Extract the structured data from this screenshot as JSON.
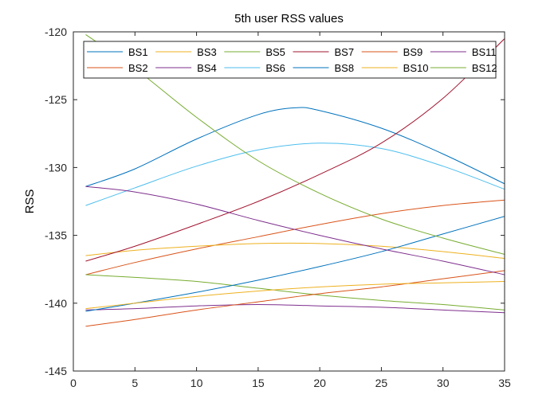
{
  "chart_data": {
    "type": "line",
    "title": "5th user RSS values",
    "xlabel": "",
    "ylabel": "RSS",
    "xlim": [
      0,
      35
    ],
    "ylim": [
      -145,
      -120
    ],
    "xticks": [
      0,
      5,
      10,
      15,
      20,
      25,
      30,
      35
    ],
    "yticks": [
      -145,
      -140,
      -135,
      -130,
      -125,
      -120
    ],
    "grid": false,
    "legend_position": "top",
    "legend_columns": 6,
    "series": [
      {
        "name": "BS1",
        "color": "#0072BD",
        "x": [
          1,
          5,
          10,
          15,
          18,
          20,
          25,
          30,
          35
        ],
        "y": [
          -131.4,
          -130.1,
          -127.9,
          -126.1,
          -125.6,
          -125.8,
          -127.1,
          -129.0,
          -131.2
        ]
      },
      {
        "name": "BS2",
        "color": "#D95319",
        "x": [
          1,
          5,
          10,
          15,
          20,
          25,
          30,
          35
        ],
        "y": [
          -137.9,
          -137.0,
          -136.0,
          -135.1,
          -134.2,
          -133.4,
          -132.8,
          -132.4
        ]
      },
      {
        "name": "BS3",
        "color": "#EDB120",
        "x": [
          1,
          5,
          10,
          15,
          20,
          25,
          30,
          35
        ],
        "y": [
          -136.5,
          -136.1,
          -135.8,
          -135.6,
          -135.6,
          -135.8,
          -136.2,
          -136.7
        ]
      },
      {
        "name": "BS4",
        "color": "#7E2F8E",
        "x": [
          1,
          5,
          10,
          15,
          20,
          25,
          30,
          35
        ],
        "y": [
          -140.5,
          -140.4,
          -140.2,
          -140.1,
          -140.2,
          -140.3,
          -140.5,
          -140.7
        ]
      },
      {
        "name": "BS5",
        "color": "#77AC30",
        "x": [
          1,
          5,
          10,
          15,
          20,
          25,
          30,
          35
        ],
        "y": [
          -137.9,
          -138.1,
          -138.4,
          -138.9,
          -139.4,
          -139.8,
          -140.1,
          -140.5
        ]
      },
      {
        "name": "BS6",
        "color": "#4DBEEE",
        "x": [
          1,
          5,
          10,
          15,
          20,
          25,
          30,
          35
        ],
        "y": [
          -132.8,
          -131.5,
          -129.9,
          -128.7,
          -128.2,
          -128.6,
          -129.9,
          -131.6
        ]
      },
      {
        "name": "BS7",
        "color": "#A2142F",
        "x": [
          1,
          5,
          10,
          15,
          20,
          25,
          30,
          35
        ],
        "y": [
          -136.9,
          -135.8,
          -134.2,
          -132.5,
          -130.5,
          -128.2,
          -124.9,
          -120.5
        ]
      },
      {
        "name": "BS8",
        "color": "#0072BD",
        "x": [
          1,
          5,
          10,
          15,
          20,
          25,
          30,
          35
        ],
        "y": [
          -140.6,
          -140.0,
          -139.2,
          -138.3,
          -137.3,
          -136.2,
          -134.9,
          -133.6
        ]
      },
      {
        "name": "BS9",
        "color": "#D95319",
        "x": [
          1,
          5,
          10,
          15,
          20,
          25,
          30,
          35
        ],
        "y": [
          -141.7,
          -141.2,
          -140.5,
          -139.9,
          -139.3,
          -138.8,
          -138.2,
          -137.6
        ]
      },
      {
        "name": "BS10",
        "color": "#EDB120",
        "x": [
          1,
          5,
          10,
          15,
          20,
          25,
          30,
          35
        ],
        "y": [
          -140.4,
          -140.0,
          -139.5,
          -139.1,
          -138.8,
          -138.6,
          -138.5,
          -138.4
        ]
      },
      {
        "name": "BS11",
        "color": "#7E2F8E",
        "x": [
          1,
          5,
          10,
          15,
          20,
          25,
          30,
          35
        ],
        "y": [
          -131.4,
          -131.8,
          -132.7,
          -133.9,
          -135.0,
          -136.0,
          -136.9,
          -137.9
        ]
      },
      {
        "name": "BS12",
        "color": "#77AC30",
        "x": [
          1,
          5,
          10,
          15,
          20,
          25,
          30,
          35
        ],
        "y": [
          -120.2,
          -122.7,
          -126.3,
          -129.5,
          -131.9,
          -133.8,
          -135.2,
          -136.4
        ]
      }
    ]
  }
}
